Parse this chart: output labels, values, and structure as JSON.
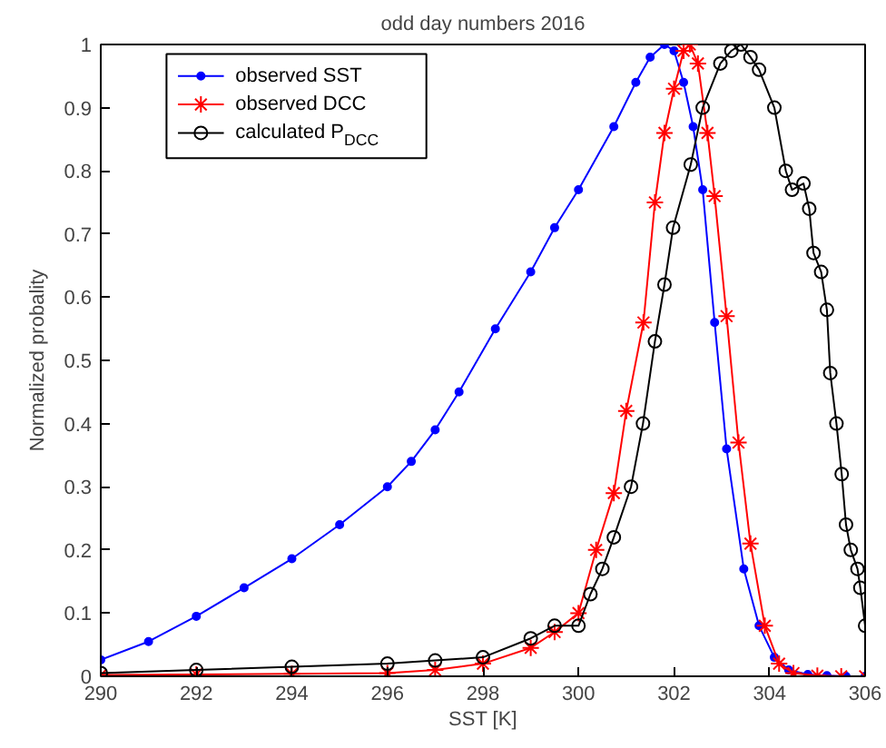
{
  "chart_data": {
    "type": "line",
    "title": "odd day numbers 2016",
    "xlabel": "SST [K]",
    "ylabel": "Normalized probality",
    "xlim": [
      290,
      306
    ],
    "ylim": [
      0,
      1
    ],
    "xticks": [
      290,
      292,
      294,
      296,
      298,
      300,
      302,
      304,
      306
    ],
    "yticks": [
      0,
      0.1,
      0.2,
      0.3,
      0.4,
      0.5,
      0.6,
      0.7,
      0.8,
      0.9,
      1
    ],
    "grid": false,
    "legend": "top left",
    "line_style": "solid",
    "series": [
      {
        "name": "observed SST",
        "color": "#0000ff",
        "marker": "circle",
        "x": [
          290,
          291,
          292,
          293,
          294,
          295,
          296,
          296.5,
          297,
          297.5,
          298.26,
          299,
          299.5,
          300,
          300.74,
          301.2,
          301.5,
          301.8,
          302,
          302.2,
          302.4,
          302.6,
          302.85,
          303.1,
          303.46,
          303.78,
          304.1,
          304.4,
          304.8,
          305.2,
          305.6,
          306
        ],
        "values": [
          0.026,
          0.055,
          0.095,
          0.14,
          0.186,
          0.24,
          0.3,
          0.34,
          0.39,
          0.45,
          0.55,
          0.64,
          0.71,
          0.77,
          0.87,
          0.94,
          0.98,
          1.0,
          0.99,
          0.94,
          0.87,
          0.77,
          0.56,
          0.36,
          0.17,
          0.08,
          0.03,
          0.01,
          0.003,
          0.001,
          0,
          0
        ]
      },
      {
        "name": "observed DCC",
        "color": "#ff0000",
        "marker": "cross",
        "x": [
          290,
          292,
          294,
          296,
          297,
          298,
          299,
          299.5,
          300,
          300.37,
          300.74,
          301,
          301.36,
          301.6,
          301.8,
          302,
          302.2,
          302.33,
          302.5,
          302.7,
          302.85,
          303.1,
          303.35,
          303.6,
          303.9,
          304.2,
          304.5,
          305,
          305.5,
          306
        ],
        "values": [
          0.002,
          0.003,
          0.004,
          0.005,
          0.01,
          0.02,
          0.045,
          0.07,
          0.1,
          0.2,
          0.29,
          0.42,
          0.56,
          0.75,
          0.86,
          0.93,
          0.99,
          1.0,
          0.97,
          0.86,
          0.76,
          0.57,
          0.37,
          0.21,
          0.08,
          0.02,
          0.005,
          0.001,
          0,
          0
        ]
      },
      {
        "name": "calculated P$_{DCC}$",
        "color": "#000000",
        "marker": "circle_open",
        "x": [
          290,
          292,
          294,
          296,
          297,
          298,
          299,
          299.5,
          300,
          300.25,
          300.5,
          300.74,
          301.1,
          301.35,
          301.6,
          301.8,
          301.98,
          302.35,
          302.6,
          302.97,
          303.2,
          303.4,
          303.6,
          303.78,
          304.1,
          304.34,
          304.47,
          304.71,
          304.83,
          304.92,
          305.08,
          305.2,
          305.27,
          305.4,
          305.51,
          305.6,
          305.7,
          305.84,
          305.9,
          306
        ],
        "values": [
          0.005,
          0.01,
          0.015,
          0.02,
          0.025,
          0.03,
          0.06,
          0.08,
          0.08,
          0.13,
          0.17,
          0.22,
          0.3,
          0.4,
          0.53,
          0.62,
          0.71,
          0.81,
          0.9,
          0.97,
          0.99,
          1.0,
          0.98,
          0.96,
          0.9,
          0.8,
          0.77,
          0.78,
          0.74,
          0.67,
          0.64,
          0.58,
          0.48,
          0.4,
          0.32,
          0.24,
          0.2,
          0.17,
          0.14,
          0.08
        ]
      }
    ]
  }
}
